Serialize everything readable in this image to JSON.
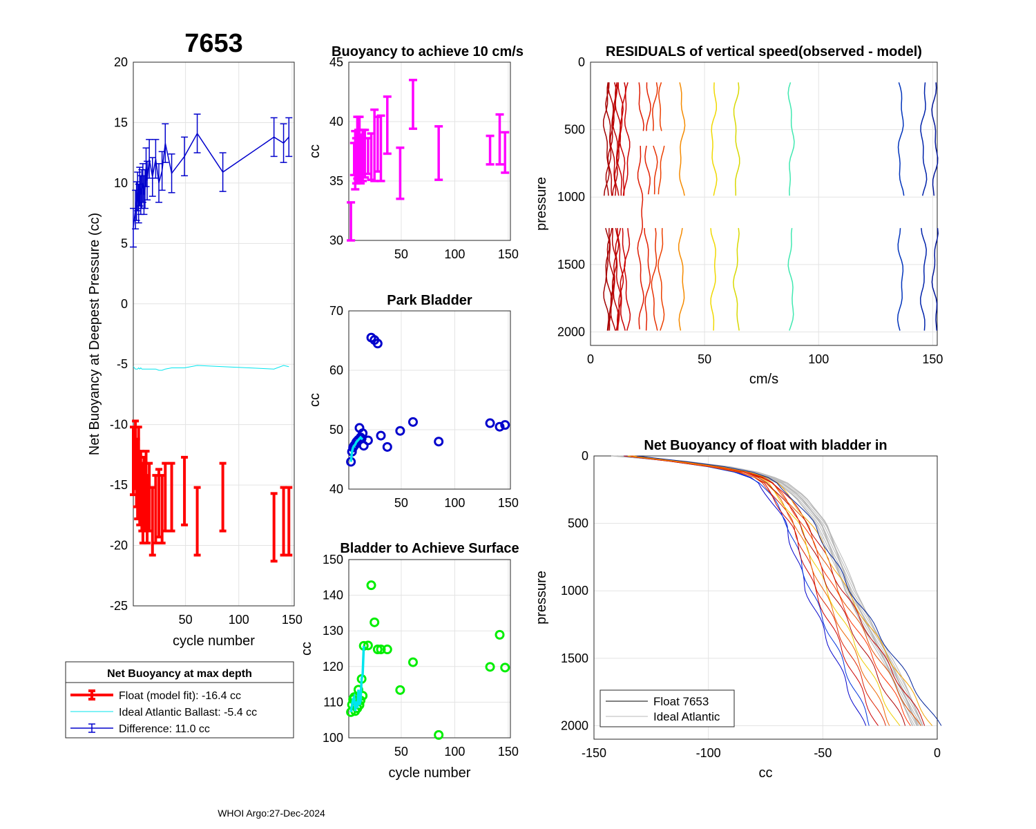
{
  "float_id": "7653",
  "footer": "WHOI Argo:27-Dec-2024",
  "colors": {
    "float": "#ff0000",
    "ideal": "#00e5ee",
    "difference": "#0000cc",
    "magenta": "#ff00ff",
    "green": "#00ee00",
    "gray": "#b8b8b8"
  },
  "chart_data": [
    {
      "id": "net-buoyancy",
      "type": "line",
      "title": "7653",
      "xlabel": "cycle number",
      "ylabel": "Net Buoyancy at Deepest Pressure (cc)",
      "xlim": [
        1,
        152
      ],
      "ylim": [
        -25,
        20
      ],
      "xticks": [
        50,
        100,
        150
      ],
      "yticks": [
        20,
        15,
        10,
        5,
        0,
        -5,
        -10,
        -15,
        -20,
        -25
      ],
      "x": [
        1,
        3,
        4,
        5,
        6,
        7,
        8,
        9,
        10,
        11,
        12,
        13,
        14,
        16,
        19,
        22,
        25,
        28,
        31,
        37,
        49,
        61,
        85,
        133,
        142,
        147
      ],
      "series": [
        {
          "name": "Float (model fit)",
          "color": "#ff0000",
          "width": 4,
          "y": [
            -13,
            -12.5,
            -14,
            -15,
            -13,
            -15.5,
            -15,
            -16,
            -17,
            -15.5,
            -16,
            -15,
            -17,
            -16,
            -18,
            -17,
            -16.5,
            -17,
            -16,
            -16,
            -15.5,
            -18,
            -16,
            -18.5,
            -18,
            -18
          ],
          "err": [
            2.8,
            2.8,
            2.8,
            2.8,
            2.8,
            2.8,
            2.8,
            2.8,
            2.8,
            2.8,
            2.8,
            2.8,
            2.8,
            2.8,
            2.8,
            2.8,
            2.8,
            2.8,
            2.8,
            2.8,
            2.8,
            2.8,
            2.8,
            2.8,
            2.8,
            2.8
          ]
        },
        {
          "name": "Ideal Atlantic Ballast",
          "color": "#00e5ee",
          "width": 1,
          "y": [
            -5.2,
            -5.4,
            -5.4,
            -5.4,
            -5.3,
            -5.4,
            -5.3,
            -5.4,
            -5.4,
            -5.4,
            -5.4,
            -5.4,
            -5.4,
            -5.4,
            -5.4,
            -5.4,
            -5.5,
            -5.5,
            -5.4,
            -5.3,
            -5.3,
            -5.1,
            -5.2,
            -5.4,
            -5.1,
            -5.2
          ]
        },
        {
          "name": "Difference",
          "color": "#0000cc",
          "width": 1.5,
          "y": [
            6.3,
            7.8,
            8.5,
            9.3,
            8.3,
            9.7,
            9.0,
            9.5,
            10.0,
            9.0,
            9.5,
            11.3,
            10.2,
            12.0,
            10.5,
            12.0,
            10.0,
            11.0,
            13.3,
            10.8,
            12.2,
            14.1,
            10.9,
            13.8,
            13.3,
            13.8
          ],
          "err": [
            1.6,
            1.6,
            1.6,
            1.6,
            1.6,
            1.6,
            1.6,
            1.6,
            1.6,
            1.6,
            1.6,
            1.6,
            1.6,
            1.6,
            1.6,
            1.6,
            1.6,
            1.6,
            1.6,
            1.6,
            1.6,
            1.6,
            1.6,
            1.6,
            1.6,
            1.6
          ]
        }
      ],
      "legend": {
        "title": "Net Buoyancy at max depth",
        "entries": [
          "Float (model fit): -16.4 cc",
          "Ideal Atlantic Ballast:  -5.4 cc",
          "Difference:  11.0 cc"
        ]
      }
    },
    {
      "id": "buoyancy-10cms",
      "type": "scatter",
      "title": "Buoyancy to achieve 10 cm/s",
      "xlabel": "",
      "ylabel": "cc",
      "xlim": [
        1,
        152
      ],
      "ylim": [
        30,
        45
      ],
      "xticks": [
        50,
        100,
        150
      ],
      "yticks": [
        45,
        40,
        35,
        30
      ],
      "x": [
        3,
        6,
        7,
        8,
        9,
        10,
        11,
        12,
        14,
        16,
        19,
        22,
        25,
        28,
        31,
        37,
        49,
        61,
        85,
        133,
        142,
        147
      ],
      "low": [
        30.0,
        35.5,
        34.3,
        34.8,
        35.2,
        35.0,
        35.5,
        34.8,
        35.0,
        35.3,
        35.6,
        35.1,
        35.0,
        35.8,
        35.0,
        37.3,
        33.5,
        39.4,
        35.1,
        36.4,
        36.4,
        35.7
      ],
      "high": [
        33.2,
        38.2,
        39.2,
        38.6,
        40.4,
        39.3,
        40.4,
        38.9,
        39.3,
        39.3,
        38.6,
        39.0,
        41.0,
        40.4,
        40.5,
        42.1,
        37.8,
        43.5,
        39.6,
        38.8,
        40.6,
        39.1
      ]
    },
    {
      "id": "park-bladder",
      "type": "scatter",
      "title": "Park Bladder",
      "xlabel": "",
      "ylabel": "cc",
      "xlim": [
        1,
        152
      ],
      "ylim": [
        40,
        70
      ],
      "xticks": [
        50,
        100,
        150
      ],
      "yticks": [
        70,
        60,
        50,
        40
      ],
      "x": [
        3,
        4,
        5,
        6,
        7,
        8,
        9,
        10,
        11,
        12,
        13,
        14,
        15,
        19,
        22,
        25,
        28,
        31,
        37,
        49,
        61,
        85,
        133,
        142,
        147
      ],
      "y": [
        44.6,
        46.3,
        47.0,
        47.3,
        47.5,
        47.9,
        48.1,
        48.3,
        50.3,
        48.7,
        48.5,
        49.4,
        47.3,
        48.2,
        65.5,
        65.1,
        64.5,
        49.0,
        47.1,
        49.8,
        51.3,
        48.0,
        51.1,
        50.5,
        50.8
      ],
      "line_y": [
        44.6,
        46.3,
        47.0,
        47.3,
        47.5,
        47.9,
        48.1,
        48.3,
        48.5,
        48.7,
        48.5,
        48.4
      ]
    },
    {
      "id": "bladder-surface",
      "type": "scatter",
      "title": "Bladder to Achieve Surface",
      "xlabel": "cycle number",
      "ylabel": "cc",
      "xlim": [
        1,
        152
      ],
      "ylim": [
        100,
        150
      ],
      "xticks": [
        50,
        100,
        150
      ],
      "yticks": [
        150,
        140,
        130,
        120,
        110,
        100
      ],
      "x": [
        3,
        4,
        5,
        6,
        7,
        8,
        9,
        10,
        11,
        12,
        13,
        14,
        15,
        19,
        22,
        25,
        28,
        31,
        37,
        49,
        61,
        85,
        133,
        142,
        147
      ],
      "y": [
        107.2,
        109.3,
        110.8,
        111.4,
        107.5,
        110.2,
        108.3,
        113.5,
        109.2,
        110.5,
        116.5,
        111.8,
        125.8,
        125.9,
        142.8,
        132.4,
        124.8,
        124.8,
        124.8,
        113.4,
        121.2,
        100.8,
        119.9,
        128.9,
        119.7
      ],
      "line_y": [
        107.2,
        109.3,
        110.8,
        111.4,
        107.5,
        110.2,
        108.3,
        113.5,
        109.2,
        110.5,
        116.5,
        118.0,
        125.8
      ]
    },
    {
      "id": "residuals",
      "type": "line",
      "title": "RESIDUALS of vertical speed(observed - model)",
      "xlabel": "cm/s",
      "ylabel": "pressure",
      "xlim": [
        0,
        152
      ],
      "ylim": [
        0,
        2100
      ],
      "xticks": [
        0,
        50,
        100,
        150
      ],
      "yticks": [
        0,
        500,
        1000,
        1500,
        2000
      ],
      "profile_offsets": [
        7,
        8,
        9,
        10,
        11,
        12,
        13,
        14,
        16,
        22,
        25,
        28,
        31,
        40,
        54,
        64,
        88,
        136,
        146,
        151
      ],
      "colors": [
        "#a00000",
        "#a80000",
        "#b00000",
        "#b50000",
        "#ba0000",
        "#c00000",
        "#c40000",
        "#c80000",
        "#cc0000",
        "#dd1a00",
        "#e22000",
        "#e63000",
        "#ec4000",
        "#f58a00",
        "#f0d800",
        "#d8d800",
        "#40e8b0",
        "#0033bb",
        "#0022aa",
        "#001599"
      ]
    },
    {
      "id": "net-buoyancy-bladder-in",
      "type": "line",
      "title": "Net Buoyancy of float with bladder in",
      "xlabel": "cc",
      "ylabel": "pressure",
      "xlim": [
        -150,
        0
      ],
      "ylim": [
        0,
        2100
      ],
      "xticks": [
        -150,
        -100,
        -50,
        0
      ],
      "yticks": [
        0,
        500,
        1000,
        1500,
        2000
      ],
      "legend": {
        "entries": [
          "Float 7653",
          "Ideal Atlantic"
        ]
      },
      "float_profile": {
        "p": [
          0,
          50,
          100,
          150,
          200,
          300,
          500,
          1000,
          1500,
          2000
        ],
        "cc": [
          -135,
          -110,
          -90,
          -80,
          -75,
          -70,
          -62,
          -50,
          -35,
          -20
        ]
      },
      "ideal_profile": {
        "p": [
          0,
          50,
          100,
          150,
          200,
          300,
          500,
          1000,
          1500,
          2000
        ],
        "cc": [
          -140,
          -105,
          -85,
          -75,
          -68,
          -60,
          -50,
          -38,
          -22,
          -8
        ]
      },
      "float_colors": [
        "#0000cc",
        "#0033dd",
        "#cc0000",
        "#dd2200",
        "#ee6600",
        "#eecc00",
        "#b00000",
        "#ff3300",
        "#e05000",
        "#c00000",
        "#f0a000",
        "#002299"
      ]
    }
  ]
}
